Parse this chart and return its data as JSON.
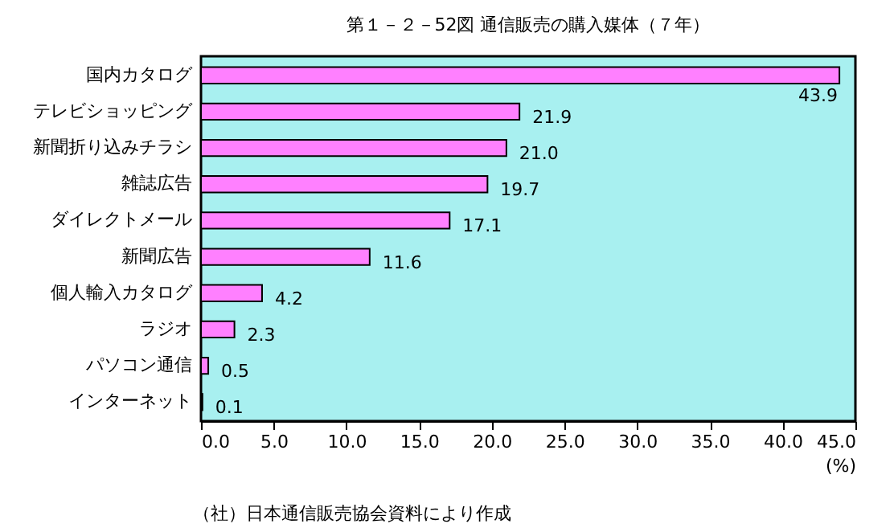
{
  "chart_data": {
    "type": "bar",
    "orientation": "horizontal",
    "title": "第１－２－52図  通信販売の購入媒体（７年）",
    "categories": [
      "国内カタログ",
      "テレビショッピング",
      "新聞折り込みチラシ",
      "雑誌広告",
      "ダイレクトメール",
      "新聞広告",
      "個人輸入カタログ",
      "ラジオ",
      "パソコン通信",
      "インターネット"
    ],
    "values": [
      43.9,
      21.9,
      21.0,
      19.7,
      17.1,
      11.6,
      4.2,
      2.3,
      0.5,
      0.1
    ],
    "value_labels": [
      "43.9",
      "21.9",
      "21.0",
      "19.7",
      "17.1",
      "11.6",
      "4.2",
      "2.3",
      "0.5",
      "0.1"
    ],
    "color": "#ff80ff",
    "xlim": [
      0,
      45
    ],
    "xticks": [
      {
        "value": 0,
        "label": "0.0"
      },
      {
        "value": 5,
        "label": "5.0"
      },
      {
        "value": 10,
        "label": "10.0"
      },
      {
        "value": 15,
        "label": "15.0"
      },
      {
        "value": 20,
        "label": "20.0"
      },
      {
        "value": 25,
        "label": "25.0"
      },
      {
        "value": 30,
        "label": "30.0"
      },
      {
        "value": 35,
        "label": "35.0"
      },
      {
        "value": 40,
        "label": "40.0"
      },
      {
        "value": 45,
        "label": "45.0"
      }
    ],
    "xlabel": "(%)",
    "annotations": [
      "（社）日本通信販売協会資料により作成"
    ],
    "grid": false
  }
}
